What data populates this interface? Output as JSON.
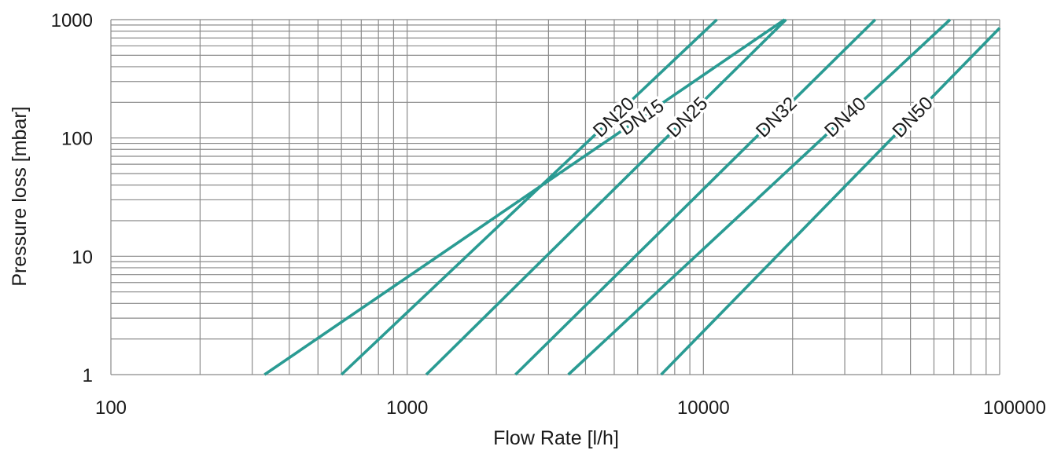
{
  "chart_data": {
    "type": "line",
    "title": "",
    "xlabel": "Flow Rate [l/h]",
    "ylabel": "Pressure loss [mbar]",
    "x_scale": "log",
    "y_scale": "log",
    "xlim": [
      100,
      100000
    ],
    "ylim": [
      1,
      1000
    ],
    "x_ticks": [
      100,
      1000,
      10000,
      100000
    ],
    "x_tick_labels": [
      "100",
      "1000",
      "10000",
      "100000"
    ],
    "y_ticks": [
      1,
      10,
      100,
      1000
    ],
    "y_tick_labels": [
      "1",
      "10",
      "100",
      "1000"
    ],
    "grid": true,
    "line_color": "#2a9b93",
    "series": [
      {
        "name": "DN15",
        "x": [
          330,
          18800
        ],
        "y": [
          1,
          1000
        ]
      },
      {
        "name": "DN20",
        "x": [
          600,
          11100
        ],
        "y": [
          1,
          1000
        ]
      },
      {
        "name": "DN25",
        "x": [
          1160,
          19000
        ],
        "y": [
          1,
          1000
        ]
      },
      {
        "name": "DN32",
        "x": [
          2320,
          38000
        ],
        "y": [
          1,
          1000
        ]
      },
      {
        "name": "DN40",
        "x": [
          3500,
          68000
        ],
        "y": [
          1,
          1000
        ]
      },
      {
        "name": "DN50",
        "x": [
          7200,
          100000
        ],
        "y": [
          1,
          850
        ]
      }
    ]
  }
}
